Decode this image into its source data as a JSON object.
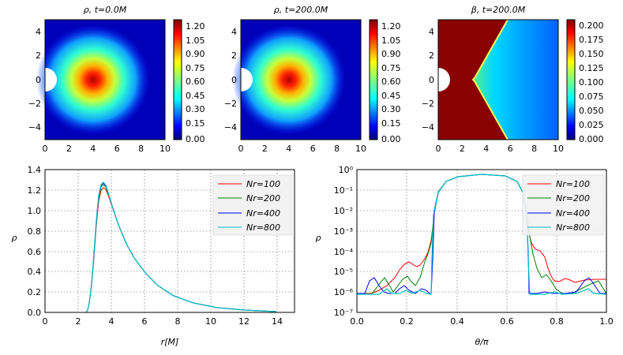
{
  "chart_data": [
    {
      "type": "heatmap",
      "title": "ρ, t=0.0M",
      "xlim": [
        0,
        10
      ],
      "ylim": [
        -5,
        5
      ],
      "xticks": [
        "0",
        "2",
        "4",
        "6",
        "8",
        "10"
      ],
      "yticks": [
        "4",
        "2",
        "0",
        "−2",
        "−4"
      ],
      "colorbar": {
        "range": [
          0.0,
          1.3
        ],
        "ticks": [
          "1.20",
          "1.05",
          "0.90",
          "0.75",
          "0.60",
          "0.45",
          "0.30",
          "0.15",
          "0.00"
        ],
        "colormap": "jet"
      },
      "blob": {
        "center_x": 4.0,
        "center_y": 0.0,
        "peak": 1.27
      },
      "excised_circle_radius": 1.0
    },
    {
      "type": "heatmap",
      "title": "ρ, t=200.0M",
      "xlim": [
        0,
        10
      ],
      "ylim": [
        -5,
        5
      ],
      "xticks": [
        "0",
        "2",
        "4",
        "6",
        "8",
        "10"
      ],
      "yticks": [
        "4",
        "2",
        "0",
        "−2",
        "−4"
      ],
      "colorbar": {
        "range": [
          0.0,
          1.3
        ],
        "ticks": [
          "1.20",
          "1.05",
          "0.90",
          "0.75",
          "0.60",
          "0.45",
          "0.30",
          "0.15",
          "0.00"
        ],
        "colormap": "jet"
      },
      "blob": {
        "center_x": 4.0,
        "center_y": 0.0,
        "peak": 1.27
      },
      "excised_circle_radius": 1.0
    },
    {
      "type": "heatmap",
      "title": "β, t=200.0M",
      "xlim": [
        0,
        10
      ],
      "ylim": [
        -5,
        5
      ],
      "xticks": [
        "0",
        "2",
        "4",
        "6",
        "8",
        "10"
      ],
      "yticks": [
        "4",
        "2",
        "0",
        "−2",
        "−4"
      ],
      "colorbar": {
        "range": [
          0.0,
          0.21
        ],
        "ticks": [
          "0.200",
          "0.175",
          "0.150",
          "0.125",
          "0.100",
          "0.075",
          "0.050",
          "0.025",
          "0.000"
        ],
        "colormap": "jet"
      },
      "boundary": {
        "vertex_x": 2.9,
        "top_x": 5.8,
        "bottom_x": 5.8
      },
      "excised_circle_radius": 1.0
    },
    {
      "type": "line",
      "xlabel": "r[M]",
      "ylabel": "ρ",
      "xlim": [
        0,
        15
      ],
      "ylim": [
        0,
        1.4
      ],
      "xticks": [
        "0",
        "2",
        "4",
        "6",
        "8",
        "10",
        "12",
        "14"
      ],
      "yticks": [
        "0.0",
        "0.2",
        "0.4",
        "0.6",
        "0.8",
        "1.0",
        "1.2",
        "1.4"
      ],
      "grid": true,
      "legend": "top-right",
      "series": [
        {
          "name": "Nr=100",
          "color": "#ff0000",
          "peak": 1.23
        },
        {
          "name": "Nr=200",
          "color": "#008000",
          "peak": 1.26
        },
        {
          "name": "Nr=400",
          "color": "#0000ff",
          "peak": 1.27
        },
        {
          "name": "Nr=800",
          "color": "#00bfbf",
          "peak": 1.28
        }
      ]
    },
    {
      "type": "line",
      "xlabel": "θ/π",
      "ylabel": "ρ",
      "xlim": [
        0,
        1
      ],
      "ylim_log10": [
        -7,
        0
      ],
      "xticks": [
        "0.0",
        "0.2",
        "0.4",
        "0.6",
        "0.8",
        "1.0"
      ],
      "yticks": [
        "10⁰",
        "10⁻¹",
        "10⁻²",
        "10⁻³",
        "10⁻⁴",
        "10⁻⁵",
        "10⁻⁶",
        "10⁻⁷"
      ],
      "grid": true,
      "legend": "top-right",
      "series": [
        {
          "name": "Nr=100",
          "color": "#ff0000"
        },
        {
          "name": "Nr=200",
          "color": "#008000"
        },
        {
          "name": "Nr=400",
          "color": "#0000ff"
        },
        {
          "name": "Nr=800",
          "color": "#00bfbf"
        }
      ]
    }
  ]
}
